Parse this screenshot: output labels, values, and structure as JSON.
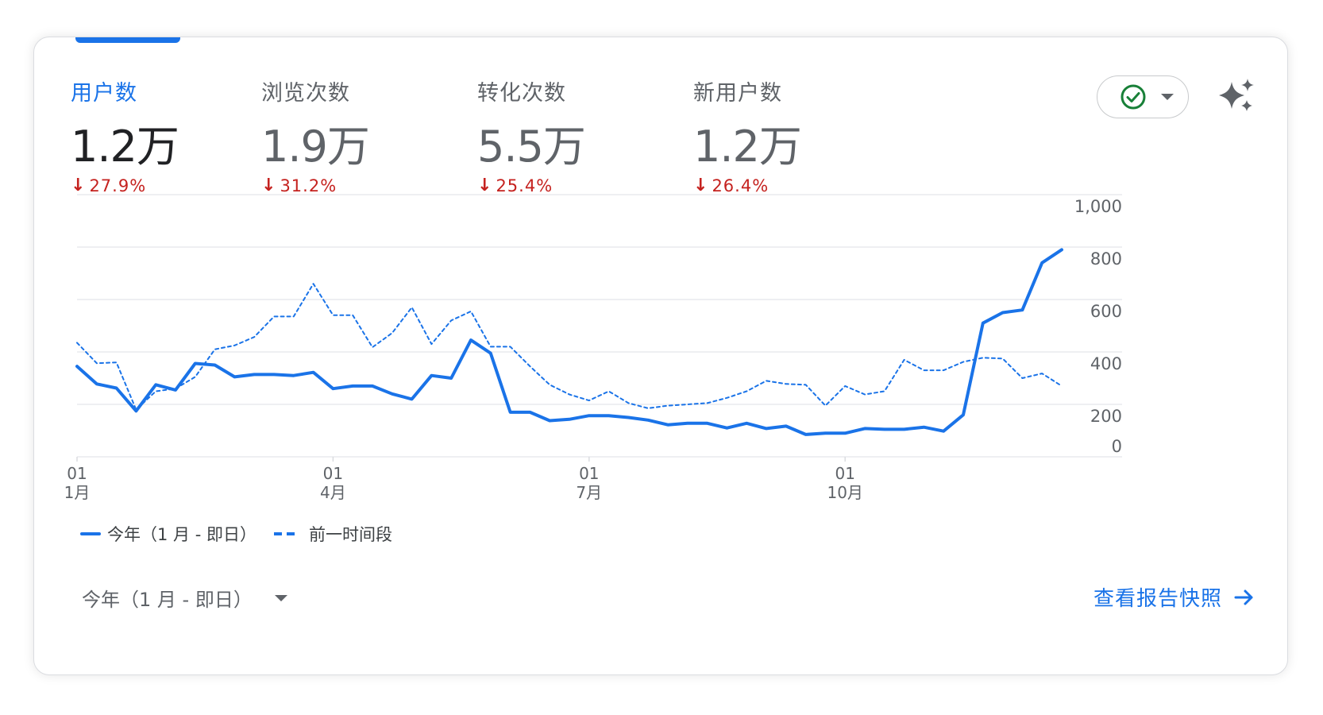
{
  "metrics": [
    {
      "label": "用户数",
      "value": "1.2万",
      "change": "27.9%",
      "direction": "down",
      "active": true
    },
    {
      "label": "浏览次数",
      "value": "1.9万",
      "change": "31.2%",
      "direction": "down",
      "active": false
    },
    {
      "label": "转化次数",
      "value": "5.5万",
      "change": "25.4%",
      "direction": "down",
      "active": false
    },
    {
      "label": "新用户数",
      "value": "1.2万",
      "change": "26.4%",
      "direction": "down",
      "active": false
    }
  ],
  "icons": {
    "check": "check-circle-icon",
    "dropdown": "caret-down-icon",
    "sparkle": "sparkle-icon",
    "arrow": "arrow-right-icon",
    "down": "arrow-down-icon"
  },
  "colors": {
    "accent": "#1a73e8",
    "negative": "#c5221f",
    "check": "#188038",
    "grid": "#e8eaed"
  },
  "chart_data": {
    "type": "line",
    "title": "",
    "xlabel": "",
    "ylabel": "",
    "ylim": [
      0,
      1000
    ],
    "yticks": [
      0,
      200,
      400,
      600,
      800,
      1000
    ],
    "ytick_labels": [
      "0",
      "200",
      "400",
      "600",
      "800",
      "1,000"
    ],
    "xticks": [
      {
        "index": 0,
        "day": "01",
        "month": "1月"
      },
      {
        "index": 13,
        "day": "01",
        "month": "4月"
      },
      {
        "index": 26,
        "day": "01",
        "month": "7月"
      },
      {
        "index": 39,
        "day": "01",
        "month": "10月"
      }
    ],
    "series": [
      {
        "name": "今年（1 月 - 即日）",
        "style": "solid",
        "values": [
          345,
          278,
          262,
          175,
          275,
          255,
          356,
          350,
          305,
          314,
          314,
          310,
          322,
          260,
          270,
          270,
          240,
          220,
          310,
          300,
          445,
          395,
          170,
          170,
          138,
          143,
          157,
          157,
          150,
          140,
          122,
          128,
          128,
          110,
          128,
          108,
          117,
          85,
          90,
          90,
          108,
          105,
          105,
          113,
          98,
          160,
          510,
          550,
          560,
          740,
          790
        ]
      },
      {
        "name": "前一时间段",
        "style": "dashed",
        "values": [
          435,
          357,
          360,
          180,
          250,
          260,
          305,
          410,
          425,
          457,
          535,
          535,
          660,
          540,
          540,
          418,
          472,
          570,
          430,
          520,
          555,
          420,
          420,
          345,
          275,
          238,
          215,
          250,
          205,
          185,
          195,
          200,
          205,
          225,
          250,
          290,
          278,
          275,
          195,
          270,
          238,
          250,
          370,
          330,
          330,
          362,
          378,
          375,
          300,
          318,
          270
        ]
      }
    ]
  },
  "legend": [
    {
      "label": "今年（1 月 - 即日）",
      "style": "solid"
    },
    {
      "label": "前一时间段",
      "style": "dashed"
    }
  ],
  "date_range": {
    "label": "今年（1 月 - 即日）"
  },
  "footer": {
    "link_label": "查看报告快照"
  }
}
